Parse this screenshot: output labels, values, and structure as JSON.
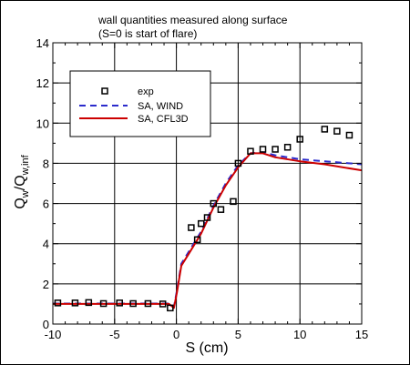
{
  "chart_data": {
    "type": "line",
    "title_lines": [
      "wall quantities measured along surface",
      "(S=0 is start of flare)"
    ],
    "xlabel": "S (cm)",
    "ylabel": {
      "main": "Q",
      "sub1": "w",
      "mid": "/Q",
      "sub2": "w,inf"
    },
    "xlim": [
      -10,
      15
    ],
    "ylim": [
      0,
      14
    ],
    "xticks": [
      -10,
      -5,
      0,
      5,
      10,
      15
    ],
    "yticks": [
      0,
      2,
      4,
      6,
      8,
      10,
      12,
      14
    ],
    "grid": true,
    "legend_position": "top-left",
    "series": [
      {
        "name": "exp",
        "style": "markers",
        "marker": "square",
        "color": "#000000",
        "points": [
          [
            -9.6,
            1.05
          ],
          [
            -8.2,
            1.05
          ],
          [
            -7.1,
            1.07
          ],
          [
            -5.9,
            1.02
          ],
          [
            -4.6,
            1.05
          ],
          [
            -3.5,
            1.02
          ],
          [
            -2.3,
            1.02
          ],
          [
            -1.1,
            1.0
          ],
          [
            -0.5,
            0.8
          ],
          [
            1.2,
            4.8
          ],
          [
            1.7,
            4.2
          ],
          [
            2.0,
            5.0
          ],
          [
            2.5,
            5.3
          ],
          [
            3.0,
            6.0
          ],
          [
            3.6,
            5.7
          ],
          [
            4.6,
            6.1
          ],
          [
            5.0,
            8.0
          ],
          [
            6.0,
            8.6
          ],
          [
            7.0,
            8.7
          ],
          [
            8.0,
            8.7
          ],
          [
            9.0,
            8.8
          ],
          [
            10.0,
            9.2
          ],
          [
            12.0,
            9.7
          ],
          [
            13.0,
            9.6
          ],
          [
            14.0,
            9.4
          ]
        ]
      },
      {
        "name": "SA, WIND",
        "style": "dashed",
        "color": "#2b2bcc",
        "points": [
          [
            -10,
            1.02
          ],
          [
            -5,
            1.02
          ],
          [
            -0.6,
            1.02
          ],
          [
            -0.2,
            0.85
          ],
          [
            0.05,
            1.7
          ],
          [
            0.4,
            3.0
          ],
          [
            1.0,
            3.6
          ],
          [
            2.0,
            4.6
          ],
          [
            3.0,
            5.9
          ],
          [
            4.0,
            7.0
          ],
          [
            5.0,
            7.9
          ],
          [
            6.0,
            8.5
          ],
          [
            7.0,
            8.55
          ],
          [
            8.0,
            8.4
          ],
          [
            10.0,
            8.2
          ],
          [
            12.0,
            8.1
          ],
          [
            15.0,
            7.95
          ]
        ]
      },
      {
        "name": "SA, CFL3D",
        "style": "solid",
        "color": "#cc0000",
        "points": [
          [
            -10,
            1.0
          ],
          [
            -5,
            1.0
          ],
          [
            -0.6,
            1.0
          ],
          [
            -0.2,
            0.8
          ],
          [
            0.05,
            1.6
          ],
          [
            0.4,
            2.9
          ],
          [
            1.0,
            3.5
          ],
          [
            2.0,
            4.5
          ],
          [
            3.0,
            5.8
          ],
          [
            4.0,
            6.9
          ],
          [
            5.0,
            7.8
          ],
          [
            6.0,
            8.5
          ],
          [
            7.0,
            8.5
          ],
          [
            8.0,
            8.3
          ],
          [
            10.0,
            8.1
          ],
          [
            12.0,
            7.95
          ],
          [
            15.0,
            7.65
          ]
        ]
      }
    ]
  }
}
